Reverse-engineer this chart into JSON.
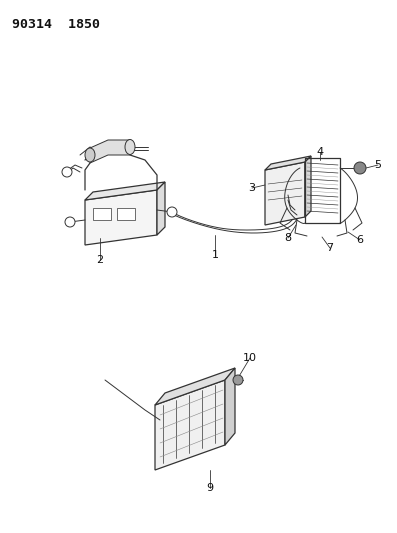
{
  "title": "90314  1850",
  "bg_color": "#ffffff",
  "line_color": "#333333",
  "text_color": "#111111",
  "fig_width": 3.97,
  "fig_height": 5.33,
  "dpi": 100,
  "lw": 0.7,
  "lw_thick": 0.9
}
